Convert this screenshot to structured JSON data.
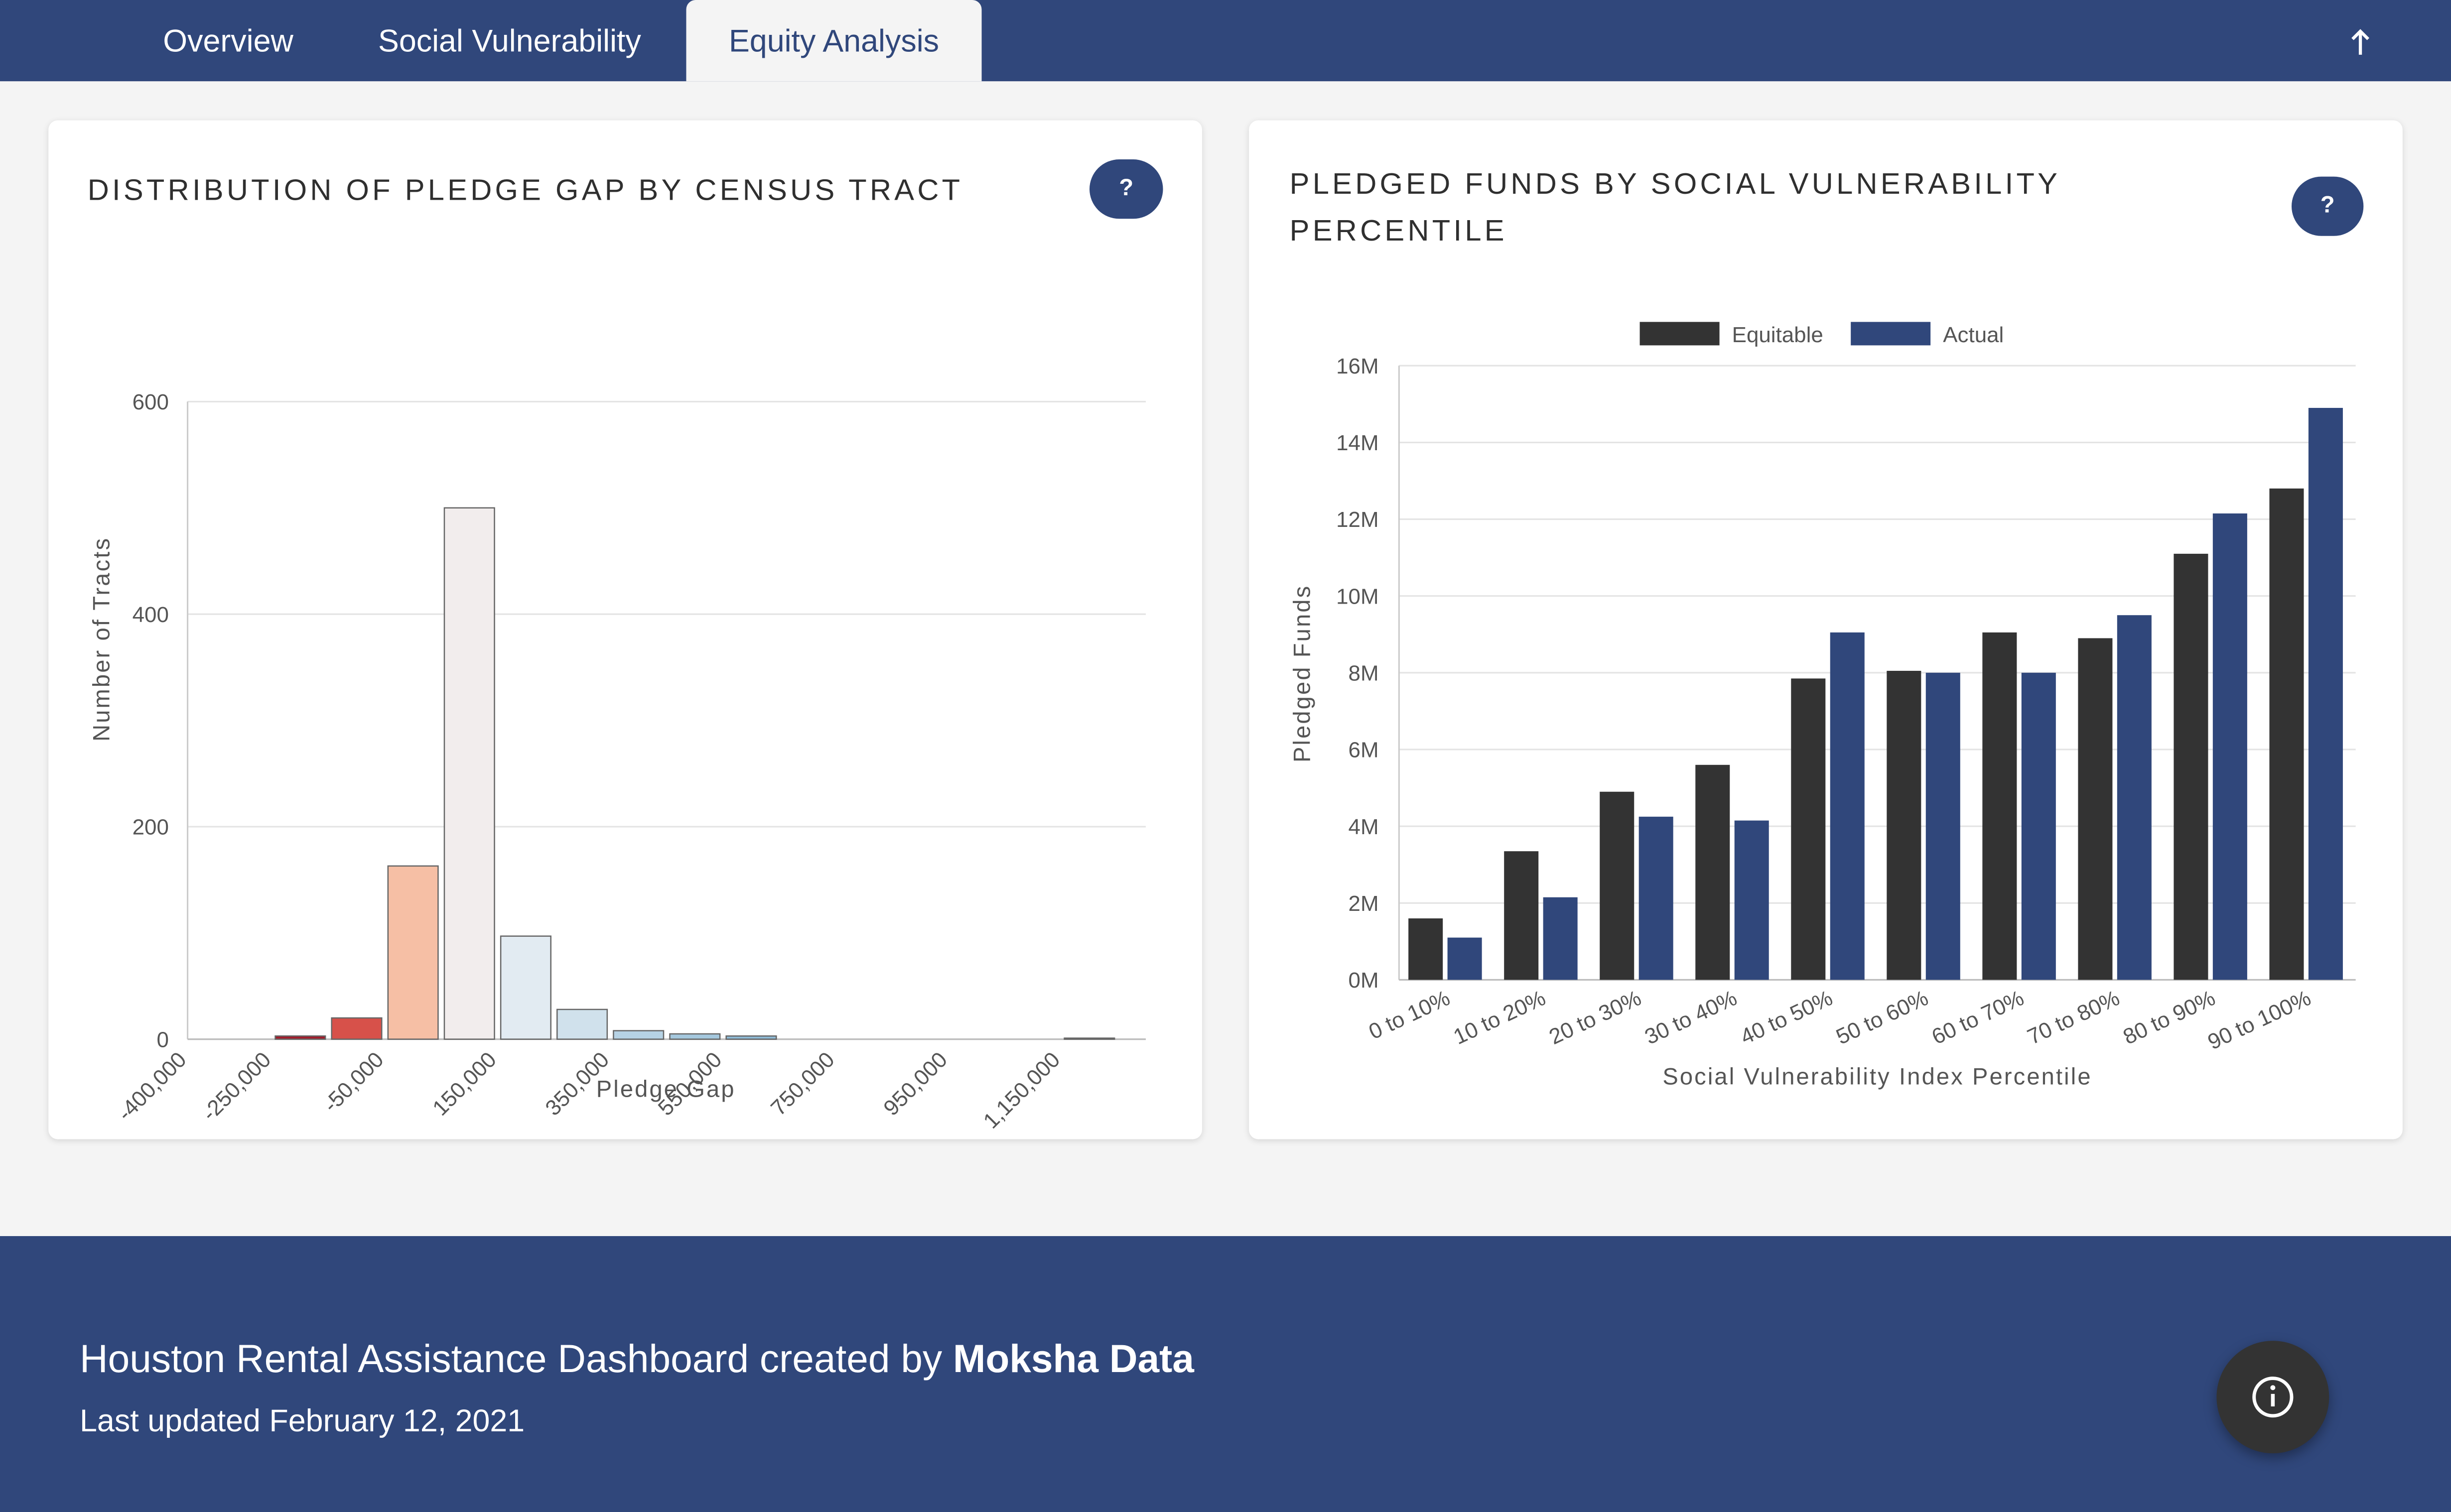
{
  "nav": {
    "tabs": [
      {
        "label": "Overview"
      },
      {
        "label": "Social Vulnerability"
      },
      {
        "label": "Equity Analysis"
      }
    ],
    "active_tab": "Equity Analysis",
    "back_to_top_icon": "arrow-up-icon"
  },
  "left_card": {
    "title": "DISTRIBUTION OF PLEDGE GAP BY CENSUS TRACT",
    "help_label": "?"
  },
  "right_card": {
    "title_line1": "PLEDGED FUNDS BY SOCIAL VULNERABILITY",
    "title_line2": "PERCENTILE",
    "help_label": "?"
  },
  "chart_data": [
    {
      "type": "bar",
      "title": "DISTRIBUTION OF PLEDGE GAP BY CENSUS TRACT",
      "xlabel": "Pledge Gap",
      "ylabel": "Number of Tracts",
      "ylim": [
        0,
        600
      ],
      "yticks": [
        "0",
        "200",
        "400",
        "600"
      ],
      "xlim": [
        -400000,
        1300000
      ],
      "xticks": [
        {
          "value": -400000,
          "label": "-400,000"
        },
        {
          "value": -250000,
          "label": "-250,000"
        },
        {
          "value": -50000,
          "label": "-50,000"
        },
        {
          "value": 150000,
          "label": "150,000"
        },
        {
          "value": 350000,
          "label": "350,000"
        },
        {
          "value": 550000,
          "label": "550,000"
        },
        {
          "value": 750000,
          "label": "750,000"
        },
        {
          "value": 950000,
          "label": "950,000"
        },
        {
          "value": 1150000,
          "label": "1,150,000"
        }
      ],
      "bins": [
        {
          "start": -250000,
          "end": -150000,
          "count": 3,
          "color": "#a31c2b"
        },
        {
          "start": -150000,
          "end": -50000,
          "count": 20,
          "color": "#d7514a"
        },
        {
          "start": -50000,
          "end": 50000,
          "count": 163,
          "color": "#f6bfa5"
        },
        {
          "start": 50000,
          "end": 150000,
          "count": 500,
          "color": "#f2eded"
        },
        {
          "start": 150000,
          "end": 250000,
          "count": 97,
          "color": "#e2ebf2"
        },
        {
          "start": 250000,
          "end": 350000,
          "count": 28,
          "color": "#d0e1ec"
        },
        {
          "start": 350000,
          "end": 450000,
          "count": 8,
          "color": "#b6d2e4"
        },
        {
          "start": 450000,
          "end": 550000,
          "count": 5,
          "color": "#a5c8de"
        },
        {
          "start": 550000,
          "end": 650000,
          "count": 3,
          "color": "#90bcd8"
        },
        {
          "start": 1150000,
          "end": 1250000,
          "count": 1,
          "color": "#5b8fba"
        }
      ],
      "grid": true
    },
    {
      "type": "bar",
      "title": "PLEDGED FUNDS BY SOCIAL VULNERABILITY PERCENTILE",
      "xlabel": "Social Vulnerability Index Percentile",
      "ylabel": "Pledged Funds",
      "ylim": [
        0,
        16000000
      ],
      "yticks": [
        "0M",
        "2M",
        "4M",
        "6M",
        "8M",
        "10M",
        "12M",
        "14M",
        "16M"
      ],
      "legend": "top",
      "categories": [
        "0 to 10%",
        "10 to 20%",
        "20 to 30%",
        "30 to 40%",
        "40 to 50%",
        "50 to 60%",
        "60 to 70%",
        "70 to 80%",
        "80 to 90%",
        "90 to 100%"
      ],
      "series": [
        {
          "name": "Equitable",
          "color": "#333333",
          "values": [
            1600000,
            3350000,
            4900000,
            5600000,
            7850000,
            8050000,
            9050000,
            8900000,
            11100000,
            12800000
          ]
        },
        {
          "name": "Actual",
          "color": "#30477b",
          "values": [
            1100000,
            2150000,
            4250000,
            4150000,
            9050000,
            8000000,
            8000000,
            9500000,
            12150000,
            14900000
          ]
        }
      ],
      "grid": true
    }
  ],
  "footer": {
    "credit_prefix": "Houston Rental Assistance Dashboard created by ",
    "credit_org": "Moksha Data",
    "updated": "Last updated February 12, 2021",
    "info_icon": "info-icon"
  }
}
